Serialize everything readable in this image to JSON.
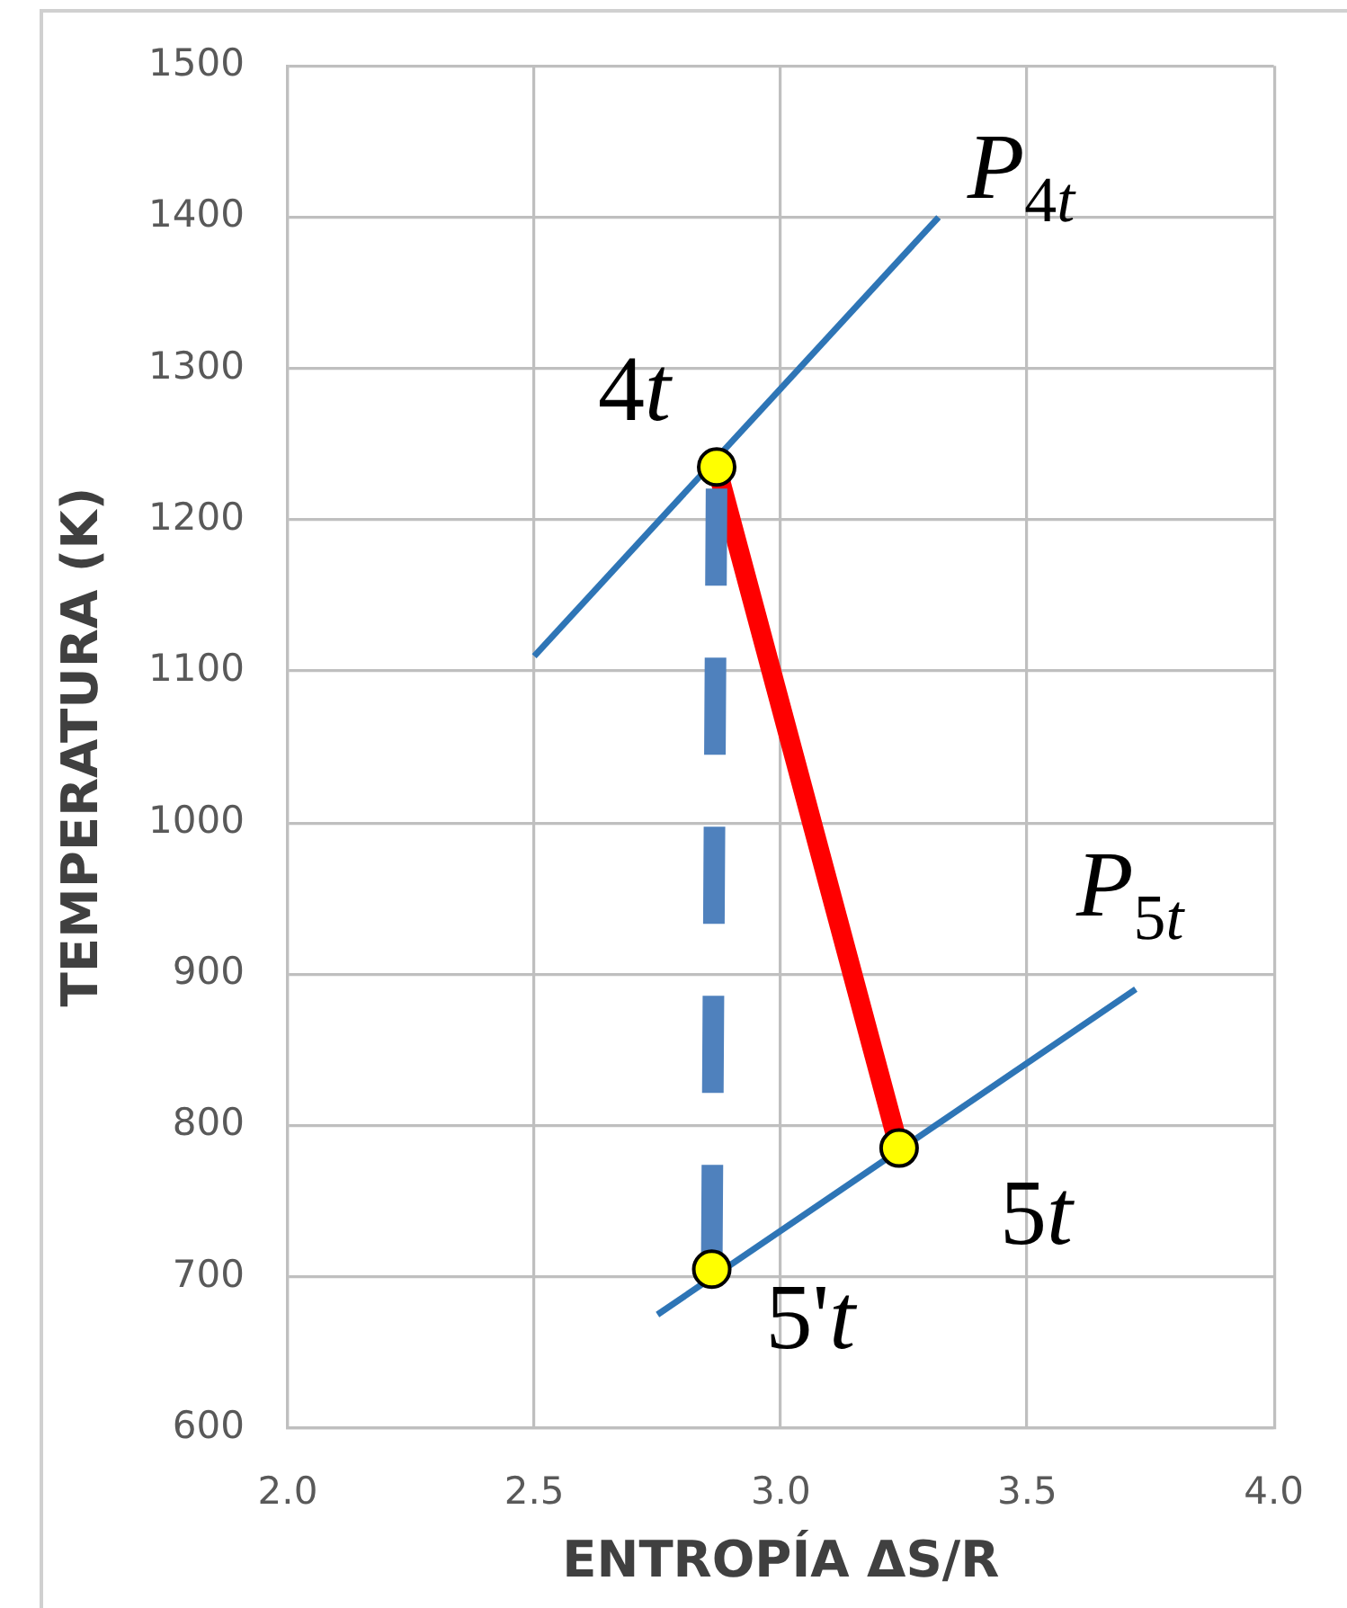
{
  "chart_data": {
    "type": "line",
    "xlabel": "ENTROPÍA ΔS/R",
    "ylabel": "TEMPERATURA (K)",
    "xlim": [
      2,
      4
    ],
    "xticks": [
      {
        "value": 2,
        "label": "2.0"
      },
      {
        "value": 2.5,
        "label": "2.5"
      },
      {
        "value": 3,
        "label": "3.0"
      },
      {
        "value": 3.5,
        "label": "3.5"
      },
      {
        "value": 4,
        "label": "4.0"
      }
    ],
    "ylim": [
      600,
      1500
    ],
    "yticks": [
      600,
      700,
      800,
      900,
      1000,
      1100,
      1200,
      1300,
      1400,
      1500
    ],
    "grid": true,
    "series": [
      {
        "name": "P$_{4t}$",
        "color": "#2e75b6",
        "x": [
          2.5,
          3.32
        ],
        "values": [
          1110,
          1400
        ]
      },
      {
        "name": "P$_{5t}$",
        "color": "#2e75b6",
        "x": [
          2.75,
          3.72
        ],
        "values": [
          675,
          890
        ]
      },
      {
        "color": "#ff0000",
        "x": [
          2.87,
          3.24
        ],
        "values": [
          1235,
          785
        ]
      },
      {
        "color": "#4f81bd",
        "line_style": "dashed",
        "x": [
          2.87,
          2.86
        ],
        "values": [
          1235,
          705
        ]
      },
      {
        "color": "#ffff00",
        "type": "scatter",
        "marker": "circle",
        "x": [
          2.87,
          3.24,
          2.86
        ],
        "values": [
          1235,
          785,
          705
        ]
      }
    ],
    "annotations": [
      {
        "text": "4t",
        "x": 2.87,
        "y": 1235
      },
      {
        "text": "5t",
        "x": 3.24,
        "y": 785
      },
      {
        "text": "5't",
        "x": 2.86,
        "y": 705
      }
    ]
  }
}
